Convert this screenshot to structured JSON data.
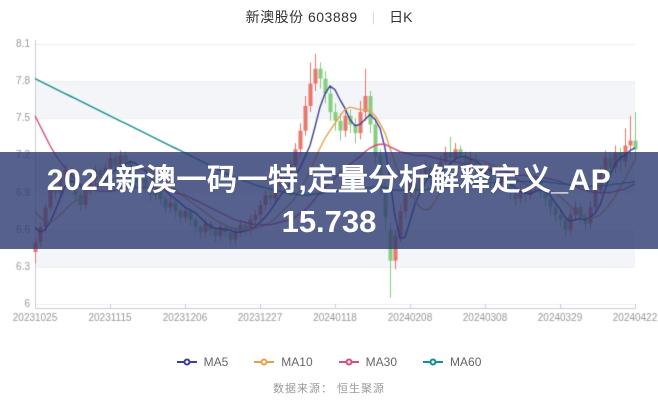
{
  "header": {
    "stock_name": "新澳股份 603889",
    "separator": "|",
    "period_label": "日K"
  },
  "overlay": {
    "line1": "2024新澳一码一特,定量分析解释定义_AP",
    "line2": "15.738"
  },
  "legend": [
    {
      "label": "MA5",
      "color": "#3e3f96"
    },
    {
      "label": "MA10",
      "color": "#e5a34f"
    },
    {
      "label": "MA30",
      "color": "#d64d80"
    },
    {
      "label": "MA60",
      "color": "#15918d"
    }
  ],
  "footer": {
    "source_text": "数据来源：  恒生聚源"
  },
  "colors": {
    "axis": "#c8ccd4",
    "tick_text": "#999999",
    "band": "#f3f5f9",
    "grid": "#eceef3",
    "up": "#e9776b",
    "down": "#85ce80",
    "banner": "rgba(45,58,112,0.80)"
  },
  "chart_data": {
    "type": "candlestick",
    "title": "新澳股份 603889 日K",
    "ylabel": "price",
    "ylim": [
      6,
      8.1
    ],
    "y_ticks": [
      8.1,
      7.8,
      7.5,
      7.2,
      6.9,
      6.6,
      6.3,
      6
    ],
    "shaded_bands": [
      [
        7.8,
        7.5
      ],
      [
        7.2,
        6.9
      ],
      [
        6.6,
        6.3
      ]
    ],
    "x_tick_labels": [
      "20231025",
      "20231115",
      "20231206",
      "20231227",
      "20240118",
      "20240208",
      "20240308",
      "20240329",
      "20240422"
    ],
    "x_tick_indices": [
      0,
      15,
      30,
      45,
      60,
      75,
      90,
      105,
      120
    ],
    "legend_position": "bottom",
    "grid": true,
    "up_color": "#e9776b",
    "down_color": "#85ce80",
    "candles": [
      [
        6.42,
        6.5,
        6.33,
        6.53
      ],
      [
        6.5,
        6.62,
        6.46,
        6.65
      ],
      [
        6.62,
        6.78,
        6.58,
        6.81
      ],
      [
        6.78,
        6.95,
        6.75,
        6.98
      ],
      [
        6.95,
        6.9,
        6.85,
        6.99
      ],
      [
        6.9,
        7.02,
        6.87,
        7.06
      ],
      [
        7.02,
        7.08,
        6.98,
        7.13
      ],
      [
        7.08,
        6.98,
        6.94,
        7.1
      ],
      [
        6.98,
        6.88,
        6.83,
        7.0
      ],
      [
        6.88,
        6.8,
        6.75,
        6.91
      ],
      [
        6.8,
        6.92,
        6.77,
        6.95
      ],
      [
        6.92,
        7.0,
        6.88,
        7.04
      ],
      [
        7.0,
        7.08,
        6.96,
        7.12
      ],
      [
        7.08,
        7.02,
        6.97,
        7.11
      ],
      [
        7.02,
        7.1,
        6.99,
        7.14
      ],
      [
        7.1,
        7.18,
        7.06,
        7.22
      ],
      [
        7.18,
        7.12,
        7.07,
        7.21
      ],
      [
        7.12,
        7.2,
        7.09,
        7.24
      ],
      [
        7.2,
        7.15,
        7.1,
        7.23
      ],
      [
        7.15,
        7.05,
        7.0,
        7.17
      ],
      [
        7.05,
        6.98,
        6.93,
        7.07
      ],
      [
        6.98,
        7.02,
        6.94,
        7.06
      ],
      [
        7.02,
        6.95,
        6.9,
        7.04
      ],
      [
        6.95,
        6.88,
        6.83,
        6.97
      ],
      [
        6.88,
        6.92,
        6.84,
        6.96
      ],
      [
        6.92,
        6.85,
        6.8,
        6.94
      ],
      [
        6.85,
        6.78,
        6.73,
        6.87
      ],
      [
        6.78,
        6.82,
        6.74,
        6.86
      ],
      [
        6.82,
        6.75,
        6.7,
        6.84
      ],
      [
        6.75,
        6.7,
        6.65,
        6.77
      ],
      [
        6.7,
        6.75,
        6.66,
        6.79
      ],
      [
        6.75,
        6.68,
        6.63,
        6.77
      ],
      [
        6.68,
        6.62,
        6.57,
        6.7
      ],
      [
        6.62,
        6.58,
        6.53,
        6.64
      ],
      [
        6.58,
        6.65,
        6.54,
        6.69
      ],
      [
        6.65,
        6.6,
        6.55,
        6.67
      ],
      [
        6.6,
        6.55,
        6.5,
        6.62
      ],
      [
        6.55,
        6.62,
        6.51,
        6.66
      ],
      [
        6.62,
        6.58,
        6.53,
        6.64
      ],
      [
        6.58,
        6.52,
        6.47,
        6.6
      ],
      [
        6.52,
        6.58,
        6.48,
        6.62
      ],
      [
        6.58,
        6.64,
        6.54,
        6.68
      ],
      [
        6.64,
        6.6,
        6.55,
        6.66
      ],
      [
        6.6,
        6.68,
        6.56,
        6.72
      ],
      [
        6.68,
        6.72,
        6.64,
        6.76
      ],
      [
        6.72,
        6.8,
        6.68,
        6.84
      ],
      [
        6.8,
        6.88,
        6.76,
        6.92
      ],
      [
        6.88,
        6.85,
        6.8,
        6.91
      ],
      [
        6.85,
        6.95,
        6.82,
        6.99
      ],
      [
        6.95,
        7.05,
        6.91,
        7.09
      ],
      [
        7.05,
        7.0,
        6.95,
        7.08
      ],
      [
        7.0,
        7.12,
        6.97,
        7.16
      ],
      [
        7.12,
        7.25,
        7.08,
        7.3
      ],
      [
        7.25,
        7.4,
        7.2,
        7.46
      ],
      [
        7.4,
        7.6,
        7.36,
        7.68
      ],
      [
        7.6,
        7.78,
        7.55,
        7.95
      ],
      [
        7.78,
        7.9,
        7.72,
        8.02
      ],
      [
        7.9,
        7.82,
        7.74,
        7.95
      ],
      [
        7.82,
        7.7,
        7.62,
        7.88
      ],
      [
        7.7,
        7.55,
        7.48,
        7.76
      ],
      [
        7.55,
        7.48,
        7.4,
        7.62
      ],
      [
        7.48,
        7.4,
        7.32,
        7.54
      ],
      [
        7.4,
        7.52,
        7.35,
        7.58
      ],
      [
        7.52,
        7.45,
        7.38,
        7.57
      ],
      [
        7.45,
        7.38,
        7.3,
        7.5
      ],
      [
        7.38,
        7.55,
        7.33,
        7.64
      ],
      [
        7.55,
        7.68,
        7.48,
        7.9
      ],
      [
        7.68,
        7.45,
        7.38,
        7.72
      ],
      [
        7.45,
        7.2,
        7.12,
        7.5
      ],
      [
        7.2,
        6.95,
        6.88,
        7.25
      ],
      [
        6.95,
        6.7,
        6.6,
        7.0
      ],
      [
        6.6,
        6.35,
        6.05,
        6.66
      ],
      [
        6.35,
        6.55,
        6.28,
        6.6
      ],
      [
        6.55,
        6.75,
        6.5,
        6.8
      ],
      [
        6.75,
        6.9,
        6.7,
        6.96
      ],
      [
        6.9,
        6.98,
        6.85,
        7.04
      ],
      [
        6.98,
        6.92,
        6.86,
        7.01
      ],
      [
        6.92,
        7.05,
        6.89,
        7.1
      ],
      [
        7.05,
        7.1,
        7.0,
        7.16
      ],
      [
        7.1,
        7.02,
        6.96,
        7.13
      ],
      [
        7.02,
        7.08,
        6.98,
        7.13
      ],
      [
        7.08,
        7.15,
        7.04,
        7.2
      ],
      [
        7.15,
        7.22,
        7.1,
        7.27
      ],
      [
        7.22,
        7.18,
        7.12,
        7.35
      ],
      [
        7.18,
        7.25,
        7.14,
        7.3
      ],
      [
        7.25,
        7.2,
        7.14,
        7.28
      ],
      [
        7.2,
        7.12,
        7.06,
        7.23
      ],
      [
        7.12,
        7.18,
        7.08,
        7.23
      ],
      [
        7.18,
        7.1,
        7.04,
        7.21
      ],
      [
        7.1,
        7.05,
        6.99,
        7.13
      ],
      [
        7.05,
        7.08,
        7.01,
        7.14
      ],
      [
        7.08,
        7.0,
        6.94,
        7.11
      ],
      [
        7.0,
        6.95,
        6.89,
        7.03
      ],
      [
        6.95,
        7.02,
        6.91,
        7.07
      ],
      [
        7.02,
        6.98,
        6.92,
        7.05
      ],
      [
        6.98,
        6.9,
        6.84,
        7.0
      ],
      [
        6.9,
        6.85,
        6.79,
        6.93
      ],
      [
        6.85,
        6.92,
        6.81,
        6.97
      ],
      [
        6.92,
        6.88,
        6.82,
        6.95
      ],
      [
        6.88,
        6.95,
        6.84,
        7.0
      ],
      [
        6.95,
        7.0,
        6.9,
        7.05
      ],
      [
        7.0,
        6.92,
        6.86,
        7.03
      ],
      [
        6.92,
        6.85,
        6.79,
        6.95
      ],
      [
        6.85,
        6.78,
        6.72,
        6.88
      ],
      [
        6.78,
        6.72,
        6.66,
        6.81
      ],
      [
        6.72,
        6.68,
        6.62,
        6.76
      ],
      [
        6.68,
        6.6,
        6.54,
        6.71
      ],
      [
        6.6,
        6.72,
        6.56,
        6.77
      ],
      [
        6.72,
        6.78,
        6.67,
        6.83
      ],
      [
        6.78,
        6.7,
        6.64,
        6.81
      ],
      [
        6.7,
        6.65,
        6.59,
        6.74
      ],
      [
        6.65,
        6.78,
        6.61,
        6.83
      ],
      [
        6.78,
        6.92,
        6.74,
        6.97
      ],
      [
        6.92,
        7.05,
        6.88,
        7.11
      ],
      [
        7.05,
        7.18,
        7.01,
        7.24
      ],
      [
        7.18,
        7.1,
        7.03,
        7.22
      ],
      [
        7.1,
        7.22,
        7.06,
        7.28
      ],
      [
        7.22,
        7.15,
        7.08,
        7.26
      ],
      [
        7.15,
        7.28,
        7.11,
        7.42
      ],
      [
        7.28,
        7.32,
        7.2,
        7.52
      ],
      [
        7.32,
        7.25,
        7.16,
        7.55
      ]
    ],
    "series": [
      {
        "name": "MA5",
        "color": "#3e3f96",
        "values": [
          6.62,
          6.58,
          6.6,
          6.66,
          6.75,
          6.85,
          6.95,
          6.99,
          6.99,
          6.95,
          6.93,
          6.92,
          6.94,
          6.96,
          7.0,
          7.04,
          7.08,
          7.1,
          7.13,
          7.15,
          7.14,
          7.1,
          7.08,
          7.03,
          6.98,
          6.96,
          6.92,
          6.88,
          6.85,
          6.82,
          6.78,
          6.76,
          6.74,
          6.7,
          6.66,
          6.63,
          6.61,
          6.61,
          6.6,
          6.6,
          6.58,
          6.58,
          6.59,
          6.6,
          6.62,
          6.66,
          6.7,
          6.75,
          6.81,
          6.87,
          6.92,
          6.97,
          7.03,
          7.1,
          7.19,
          7.28,
          7.43,
          7.59,
          7.7,
          7.76,
          7.73,
          7.65,
          7.58,
          7.49,
          7.44,
          7.45,
          7.49,
          7.53,
          7.49,
          7.42,
          7.26,
          7.0,
          6.71,
          6.53,
          6.54,
          6.67,
          6.81,
          6.9,
          6.98,
          7.04,
          7.05,
          7.06,
          7.09,
          7.13,
          7.17,
          7.19,
          7.19,
          7.17,
          7.16,
          7.13,
          7.1,
          7.08,
          7.05,
          7.03,
          7.01,
          6.98,
          6.94,
          6.91,
          6.9,
          6.89,
          6.91,
          6.92,
          6.91,
          6.88,
          6.82,
          6.77,
          6.7,
          6.67,
          6.68,
          6.69,
          6.68,
          6.7,
          6.73,
          6.8,
          6.92,
          7.04,
          7.13,
          7.18,
          7.2,
          7.24,
          7.26
        ]
      },
      {
        "name": "MA10",
        "color": "#e5a34f",
        "values": [
          6.75,
          6.7,
          6.67,
          6.66,
          6.68,
          6.72,
          6.76,
          6.8,
          6.83,
          6.85,
          6.88,
          6.92,
          6.96,
          6.98,
          6.99,
          7.0,
          7.01,
          7.03,
          7.05,
          7.07,
          7.08,
          7.09,
          7.09,
          7.08,
          7.06,
          7.03,
          7.0,
          6.96,
          6.93,
          6.89,
          6.86,
          6.83,
          6.8,
          6.77,
          6.74,
          6.71,
          6.68,
          6.66,
          6.64,
          6.62,
          6.61,
          6.6,
          6.6,
          6.6,
          6.61,
          6.62,
          6.64,
          6.66,
          6.69,
          6.73,
          6.77,
          6.81,
          6.86,
          6.92,
          6.99,
          7.08,
          7.17,
          7.26,
          7.34,
          7.4,
          7.46,
          7.52,
          7.57,
          7.59,
          7.58,
          7.57,
          7.57,
          7.56,
          7.52,
          7.46,
          7.38,
          7.26,
          7.14,
          7.03,
          6.94,
          6.9,
          6.84,
          6.78,
          6.76,
          6.77,
          6.83,
          6.9,
          6.97,
          7.02,
          7.07,
          7.11,
          7.13,
          7.15,
          7.16,
          7.16,
          7.15,
          7.13,
          7.11,
          7.1,
          7.08,
          7.05,
          7.02,
          6.99,
          6.97,
          6.95,
          6.95,
          6.95,
          6.94,
          6.92,
          6.9,
          6.87,
          6.83,
          6.79,
          6.76,
          6.73,
          6.7,
          6.69,
          6.7,
          6.72,
          6.76,
          6.81,
          6.87,
          6.94,
          7.01,
          7.09,
          7.16
        ]
      },
      {
        "name": "MA30",
        "color": "#d64d80",
        "values": [
          7.52,
          7.44,
          7.36,
          7.28,
          7.21,
          7.15,
          7.1,
          7.05,
          7.01,
          6.97,
          6.95,
          6.93,
          6.92,
          6.91,
          6.91,
          6.91,
          6.92,
          6.93,
          6.94,
          6.94,
          6.94,
          6.94,
          6.94,
          6.94,
          6.94,
          6.93,
          6.92,
          6.91,
          6.9,
          6.89,
          6.88,
          6.86,
          6.84,
          6.82,
          6.8,
          6.78,
          6.76,
          6.74,
          6.72,
          6.7,
          6.68,
          6.67,
          6.66,
          6.65,
          6.64,
          6.64,
          6.64,
          6.64,
          6.65,
          6.66,
          6.67,
          6.68,
          6.7,
          6.73,
          6.76,
          6.8,
          6.85,
          6.9,
          6.94,
          6.98,
          7.02,
          7.06,
          7.1,
          7.13,
          7.16,
          7.19,
          7.23,
          7.26,
          7.28,
          7.29,
          7.29,
          7.27,
          7.25,
          7.23,
          7.22,
          7.21,
          7.2,
          7.2,
          7.2,
          7.19,
          7.18,
          7.17,
          7.16,
          7.15,
          7.15,
          7.14,
          7.13,
          7.12,
          7.11,
          7.1,
          7.1,
          7.09,
          7.08,
          7.08,
          7.07,
          7.06,
          7.05,
          7.04,
          7.04,
          7.03,
          7.03,
          7.02,
          7.02,
          7.01,
          7.0,
          6.99,
          6.97,
          6.96,
          6.95,
          6.93,
          6.92,
          6.91,
          6.9,
          6.9,
          6.9,
          6.9,
          6.91,
          6.92,
          6.93,
          6.95,
          6.97
        ]
      },
      {
        "name": "MA60",
        "color": "#15918d",
        "values": [
          7.82,
          7.8,
          7.78,
          7.76,
          7.74,
          7.72,
          7.7,
          7.68,
          7.66,
          7.64,
          7.62,
          7.6,
          7.58,
          7.56,
          7.54,
          7.52,
          7.5,
          7.48,
          7.46,
          7.44,
          7.42,
          7.4,
          7.38,
          7.36,
          7.34,
          7.32,
          7.3,
          7.28,
          7.26,
          7.24,
          7.22,
          7.2,
          7.18,
          7.16,
          7.14,
          7.12,
          7.1,
          7.08,
          7.06,
          7.04,
          7.02,
          7.01,
          6.99,
          6.98,
          6.96,
          6.95,
          6.94,
          6.93,
          6.92,
          6.91,
          6.9,
          6.89,
          6.89,
          6.88,
          6.88,
          6.88,
          6.89,
          6.89,
          6.9,
          6.9,
          6.91,
          6.91,
          6.92,
          6.92,
          6.93,
          6.93,
          6.94,
          6.94,
          6.95,
          6.95,
          6.94,
          6.93,
          6.92,
          6.92,
          6.92,
          6.92,
          6.92,
          6.92,
          6.92,
          6.93,
          6.93,
          6.94,
          6.94,
          6.95,
          6.95,
          6.96,
          6.96,
          6.97,
          6.97,
          6.98,
          6.98,
          6.98,
          6.98,
          6.99,
          6.99,
          6.99,
          6.99,
          6.99,
          6.99,
          6.99,
          6.99,
          6.99,
          6.99,
          6.98,
          6.98,
          6.97,
          6.97,
          6.96,
          6.96,
          6.95,
          6.95,
          6.95,
          6.95,
          6.95,
          6.96,
          6.96,
          6.97,
          6.97,
          6.98,
          6.98,
          6.99
        ]
      }
    ]
  }
}
